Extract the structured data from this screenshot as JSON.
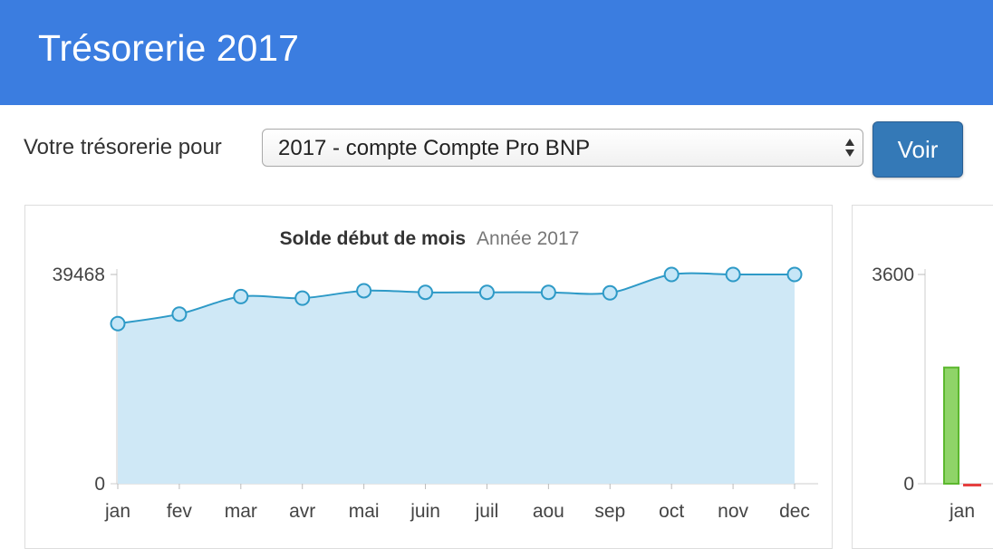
{
  "header": {
    "title": "Trésorerie 2017"
  },
  "filter": {
    "label": "Votre trésorerie pour",
    "selected_account": "2017 - compte Compte Pro BNP",
    "submit_label": "Voir"
  },
  "colors": {
    "header_bg": "#3b7de0",
    "line": "#2e9ac7",
    "area": "#cfe8f6",
    "marker_fill": "#c6e6f7",
    "bar_positive": "#8fd468",
    "bar_negative": "#e64040",
    "button_bg": "#3479b7"
  },
  "chart_data": [
    {
      "type": "area",
      "title": "Solde début de mois",
      "subtitle": "Année 2017",
      "categories": [
        "jan",
        "fev",
        "mar",
        "avr",
        "mai",
        "juin",
        "juil",
        "aou",
        "sep",
        "oct",
        "nov",
        "dec"
      ],
      "values": [
        30200,
        32000,
        35300,
        35000,
        36400,
        36100,
        36100,
        36100,
        36000,
        39468,
        39468,
        39468
      ],
      "ylim": [
        0,
        39468
      ],
      "yticks": [
        "39468",
        "0"
      ],
      "legend": "none"
    },
    {
      "type": "bar",
      "categories": [
        "jan"
      ],
      "series": [
        {
          "values": [
            2000
          ]
        },
        {
          "values": [
            -40
          ]
        }
      ],
      "ylim": [
        0,
        3600
      ],
      "yticks": [
        "3600",
        "0"
      ]
    }
  ]
}
